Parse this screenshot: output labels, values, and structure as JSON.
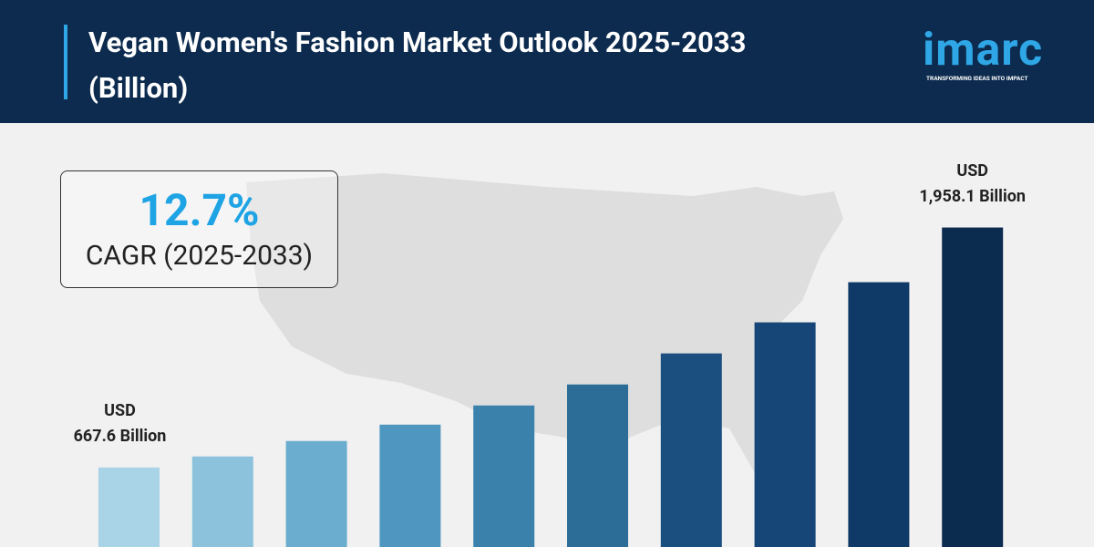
{
  "header": {
    "title": "Vegan Women's Fashion Market Outlook 2025-2033 (Billion)",
    "logo": "imarc",
    "tagline": "TRANSFORMING IDEAS INTO IMPACT"
  },
  "cagr": {
    "value": "12.7%",
    "label": "CAGR (2025-2033)"
  },
  "chart_data": {
    "type": "bar",
    "values": [
      667.6,
      727,
      810,
      898,
      1001,
      1114,
      1281,
      1448,
      1664,
      1958.1
    ],
    "value_labels": [
      "USD\n667.6 Billion",
      null,
      null,
      null,
      null,
      null,
      null,
      null,
      null,
      "USD\n1,958.1 Billion"
    ],
    "colors": [
      "#a9d3e6",
      "#8cc2dc",
      "#6badcf",
      "#4f97c0",
      "#3a81ac",
      "#2c6d97",
      "#1b4f80",
      "#154677",
      "#0f3a67",
      "#0b2b4f"
    ],
    "ylim": [
      240,
      2000
    ]
  }
}
